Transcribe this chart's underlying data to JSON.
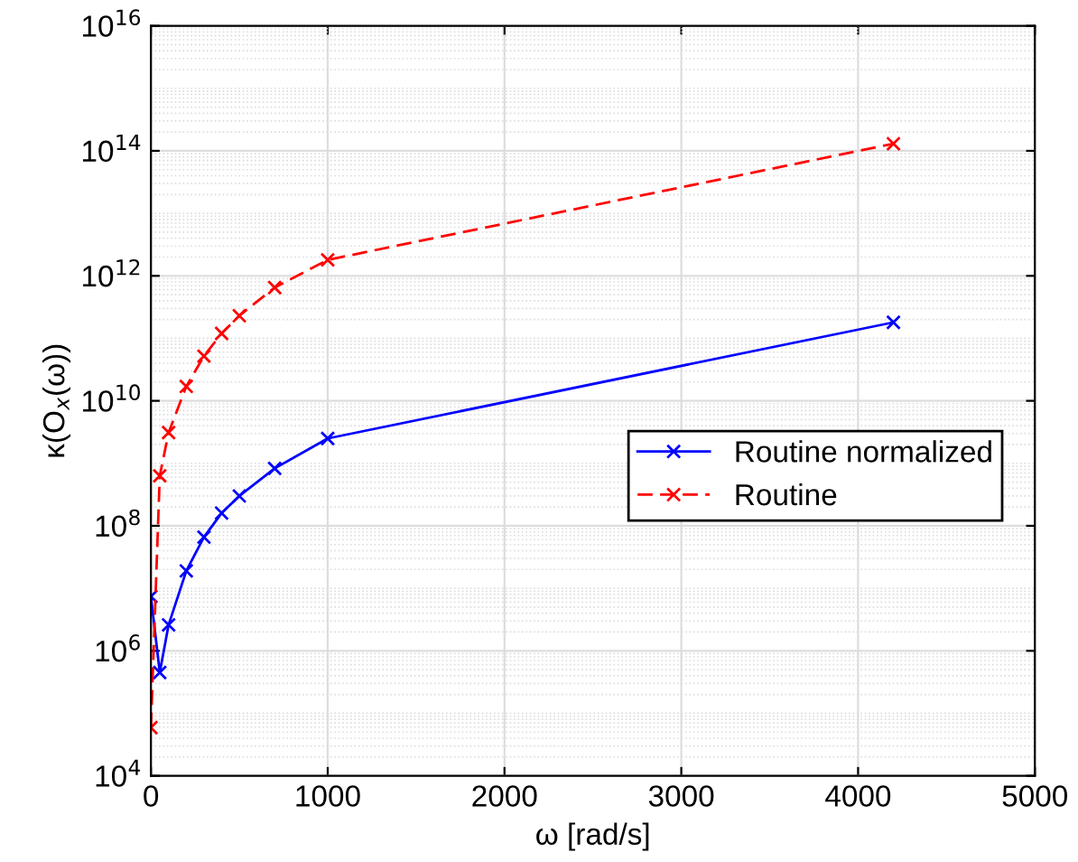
{
  "chart_data": {
    "type": "line",
    "xlabel": "ω [rad/s]",
    "ylabel": "κ(O$_{x}$(ω))",
    "log": "y",
    "grid": true,
    "legend": "right",
    "marker": "cross",
    "xlim": [
      0,
      5000
    ],
    "xticks": [
      0,
      1000,
      2000,
      3000,
      4000,
      5000
    ],
    "ylim": [
      10000.0,
      1e+16
    ],
    "yticks": [
      {
        "value": 10000.0,
        "label": "10$^{4}$"
      },
      {
        "value": 1000000.0,
        "label": "10$^{6}$"
      },
      {
        "value": 100000000.0,
        "label": "10$^{8}$"
      },
      {
        "value": 10000000000.0,
        "label": "10$^{10}$"
      },
      {
        "value": 1000000000000.0,
        "label": "10$^{12}$"
      },
      {
        "value": 100000000000000.0,
        "label": "10$^{14}$"
      },
      {
        "value": 1e+16,
        "label": "10$^{16}$"
      }
    ],
    "series": [
      {
        "name": "Routine normalized",
        "color": "#0000ff",
        "line_style": "solid",
        "x": [
          0,
          50,
          100,
          200,
          300,
          400,
          500,
          700,
          1000,
          4200
        ],
        "values": [
          7400000.0,
          450000.0,
          2600000.0,
          19000000.0,
          66000000.0,
          160000000.0,
          300000000.0,
          830000000.0,
          2500000000.0,
          180000000000.0
        ]
      },
      {
        "name": "Routine",
        "color": "#ff0000",
        "line_style": "dashed",
        "x": [
          0,
          50,
          100,
          200,
          300,
          400,
          500,
          700,
          1000,
          4200
        ],
        "values": [
          59000.0,
          630000000.0,
          3100000000.0,
          17000000000.0,
          52000000000.0,
          120000000000.0,
          230000000000.0,
          650000000000.0,
          1800000000000.0,
          130000000000000.0
        ]
      }
    ]
  }
}
